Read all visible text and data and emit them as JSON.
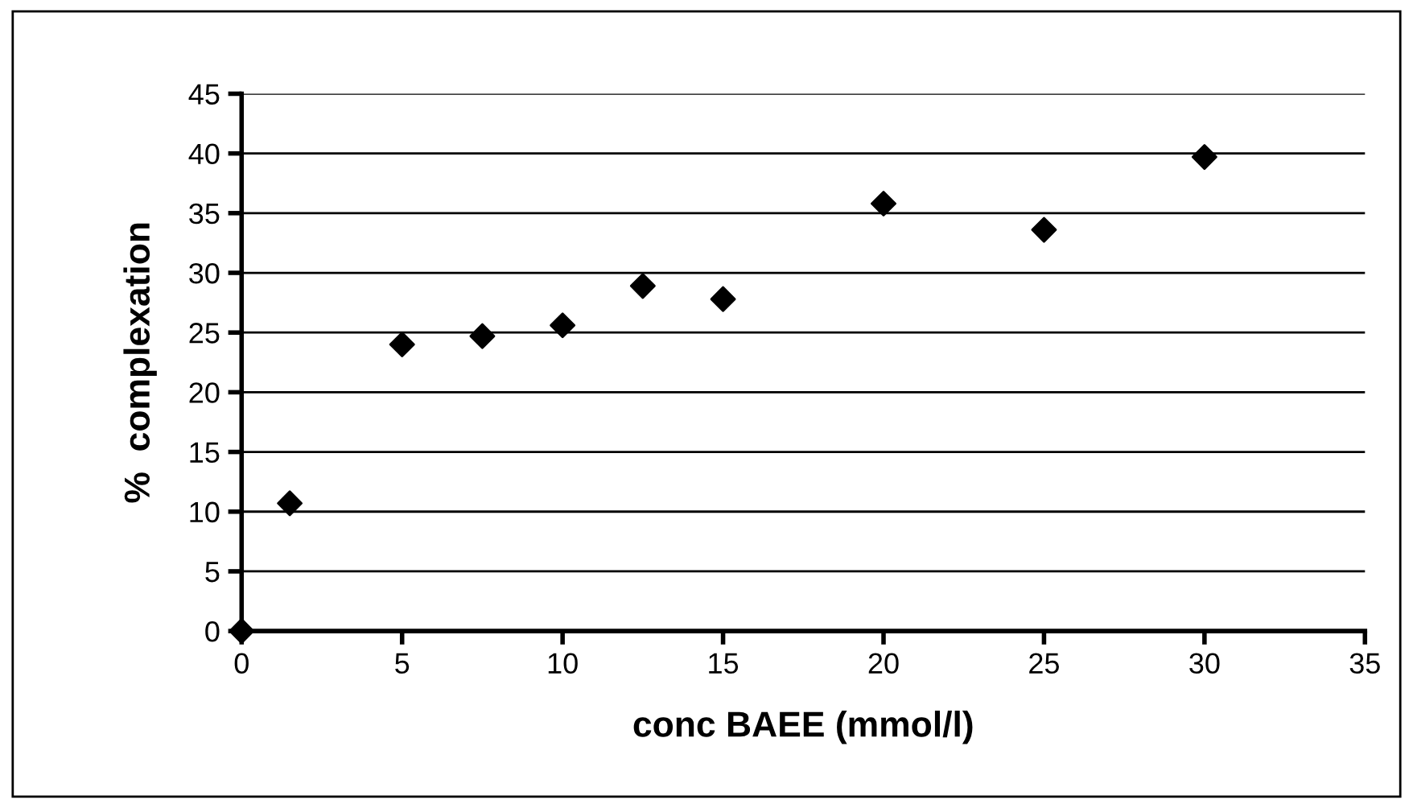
{
  "chart_data": {
    "type": "scatter",
    "xlabel": "conc BAEE (mmol/l)",
    "ylabel": "%  complexation",
    "x": [
      0,
      1.5,
      5,
      7.5,
      10,
      12.5,
      15,
      20,
      25,
      30
    ],
    "series": [
      {
        "color": "#000000",
        "values": [
          0,
          10.7,
          24,
          24.7,
          25.6,
          28.9,
          27.8,
          35.8,
          33.6,
          39.7
        ]
      }
    ],
    "xlim": [
      0,
      35
    ],
    "xticks": [
      0,
      5,
      10,
      15,
      20,
      25,
      30,
      35
    ],
    "ylim": [
      0,
      45
    ],
    "yticks": [
      0,
      5,
      10,
      15,
      20,
      25,
      30,
      35,
      40,
      45
    ],
    "grid": "y",
    "marker": "diamond",
    "legend": false
  }
}
